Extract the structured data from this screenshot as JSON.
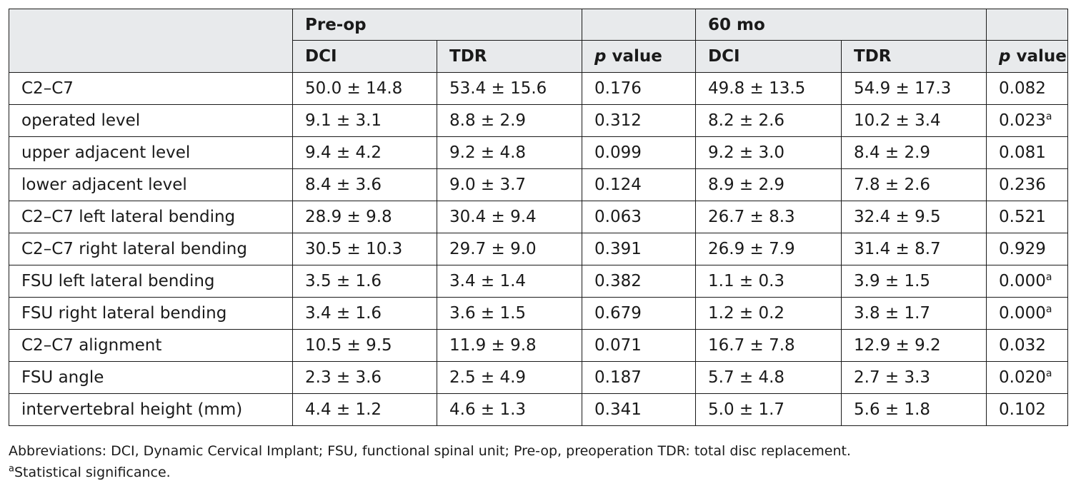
{
  "table": {
    "group_headers": [
      "",
      "Pre-op",
      "",
      "60 mo",
      ""
    ],
    "column_headers": [
      "DCI",
      "TDR",
      "p value",
      "DCI",
      "TDR",
      "p value"
    ],
    "rows": [
      {
        "label": "C2–C7",
        "preop_dci": "50.0 ± 14.8",
        "preop_tdr": "53.4 ± 15.6",
        "preop_p": "0.176",
        "m60_dci": "49.8 ± 13.5",
        "m60_tdr": "54.9 ± 17.3",
        "m60_p": "0.082",
        "m60_p_sup": ""
      },
      {
        "label": "operated level",
        "preop_dci": "9.1 ± 3.1",
        "preop_tdr": "8.8 ± 2.9",
        "preop_p": "0.312",
        "m60_dci": "8.2 ± 2.6",
        "m60_tdr": "10.2 ± 3.4",
        "m60_p": "0.023",
        "m60_p_sup": "a"
      },
      {
        "label": "upper adjacent level",
        "preop_dci": "9.4 ± 4.2",
        "preop_tdr": "9.2 ± 4.8",
        "preop_p": "0.099",
        "m60_dci": "9.2 ± 3.0",
        "m60_tdr": "8.4 ± 2.9",
        "m60_p": "0.081",
        "m60_p_sup": ""
      },
      {
        "label": "lower adjacent level",
        "preop_dci": "8.4 ± 3.6",
        "preop_tdr": "9.0 ± 3.7",
        "preop_p": "0.124",
        "m60_dci": "8.9 ± 2.9",
        "m60_tdr": "7.8 ± 2.6",
        "m60_p": "0.236",
        "m60_p_sup": ""
      },
      {
        "label": "C2–C7 left lateral bending",
        "preop_dci": "28.9 ± 9.8",
        "preop_tdr": "30.4 ± 9.4",
        "preop_p": "0.063",
        "m60_dci": "26.7 ± 8.3",
        "m60_tdr": "32.4 ± 9.5",
        "m60_p": "0.521",
        "m60_p_sup": ""
      },
      {
        "label": "C2–C7 right lateral bending",
        "preop_dci": "30.5 ± 10.3",
        "preop_tdr": "29.7 ± 9.0",
        "preop_p": "0.391",
        "m60_dci": "26.9 ± 7.9",
        "m60_tdr": "31.4 ± 8.7",
        "m60_p": "0.929",
        "m60_p_sup": ""
      },
      {
        "label": "FSU left lateral bending",
        "preop_dci": "3.5 ± 1.6",
        "preop_tdr": "3.4 ± 1.4",
        "preop_p": "0.382",
        "m60_dci": "1.1 ± 0.3",
        "m60_tdr": "3.9 ± 1.5",
        "m60_p": "0.000",
        "m60_p_sup": "a"
      },
      {
        "label": "FSU right lateral bending",
        "preop_dci": "3.4 ± 1.6",
        "preop_tdr": "3.6 ± 1.5",
        "preop_p": "0.679",
        "m60_dci": "1.2 ± 0.2",
        "m60_tdr": "3.8 ± 1.7",
        "m60_p": "0.000",
        "m60_p_sup": "a"
      },
      {
        "label": "C2–C7 alignment",
        "preop_dci": "10.5 ± 9.5",
        "preop_tdr": "11.9 ± 9.8",
        "preop_p": "0.071",
        "m60_dci": "16.7 ± 7.8",
        "m60_tdr": "12.9 ± 9.2",
        "m60_p": "0.032",
        "m60_p_sup": ""
      },
      {
        "label": "FSU angle",
        "preop_dci": "2.3 ± 3.6",
        "preop_tdr": "2.5 ± 4.9",
        "preop_p": "0.187",
        "m60_dci": "5.7 ± 4.8",
        "m60_tdr": "2.7 ± 3.3",
        "m60_p": "0.020",
        "m60_p_sup": "a"
      },
      {
        "label": "intervertebral height (mm)",
        "preop_dci": "4.4 ± 1.2",
        "preop_tdr": "4.6 ± 1.3",
        "preop_p": "0.341",
        "m60_dci": "5.0 ± 1.7",
        "m60_tdr": "5.6 ± 1.8",
        "m60_p": "0.102",
        "m60_p_sup": ""
      }
    ]
  },
  "footnotes": {
    "abbreviations": "Abbreviations: DCI, Dynamic Cervical Implant; FSU, functional spinal unit; Pre-op, preoperation TDR: total disc replacement.",
    "significance_marker": "a",
    "significance_text": "Statistical significance."
  },
  "colors": {
    "header_bg": "#e8eaec",
    "border": "#1a1a1a"
  }
}
